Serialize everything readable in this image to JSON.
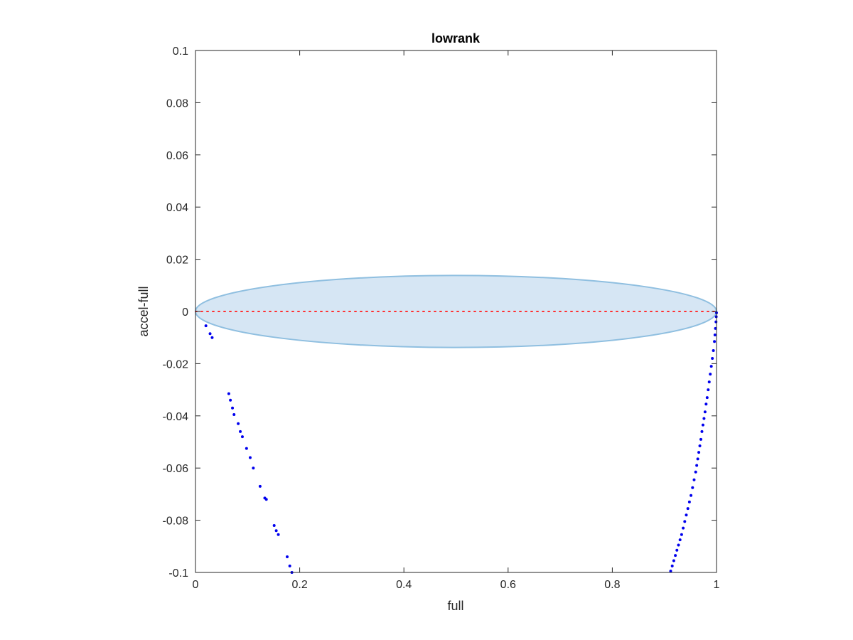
{
  "chart_data": {
    "type": "scatter",
    "title": "lowrank",
    "xlabel": "full",
    "ylabel": "accel-full",
    "xlim": [
      0,
      1
    ],
    "ylim": [
      -0.1,
      0.1
    ],
    "xticks": [
      0,
      0.2,
      0.4,
      0.6,
      0.8,
      1
    ],
    "xtick_labels": [
      "0",
      "0.2",
      "0.4",
      "0.6",
      "0.8",
      "1"
    ],
    "yticks": [
      -0.1,
      -0.08,
      -0.06,
      -0.04,
      -0.02,
      0,
      0.02,
      0.04,
      0.06,
      0.08,
      0.1
    ],
    "ytick_labels": [
      "-0.1",
      "-0.08",
      "-0.06",
      "-0.04",
      "-0.02",
      "0",
      "0.02",
      "0.04",
      "0.06",
      "0.08",
      "0.1"
    ],
    "grid": false,
    "colors": {
      "points": "#0000ee",
      "zero_line": "#ff3030",
      "ellipse_fill": "#d6e6f4",
      "ellipse_stroke": "#8fbfe0",
      "axes": "#262626"
    },
    "ellipse": {
      "center": [
        0.5,
        0
      ],
      "semi_axis_x": 0.5,
      "semi_axis_y": 0.0138
    },
    "reference_line": {
      "y": 0,
      "style": "dotted"
    },
    "points": [
      [
        0.02,
        -0.0055
      ],
      [
        0.028,
        -0.0085
      ],
      [
        0.032,
        -0.01
      ],
      [
        0.064,
        -0.0315
      ],
      [
        0.067,
        -0.034
      ],
      [
        0.071,
        -0.037
      ],
      [
        0.074,
        -0.0395
      ],
      [
        0.082,
        -0.043
      ],
      [
        0.086,
        -0.046
      ],
      [
        0.09,
        -0.048
      ],
      [
        0.098,
        -0.0525
      ],
      [
        0.105,
        -0.056
      ],
      [
        0.111,
        -0.06
      ],
      [
        0.124,
        -0.067
      ],
      [
        0.133,
        -0.0715
      ],
      [
        0.136,
        -0.072
      ],
      [
        0.151,
        -0.082
      ],
      [
        0.155,
        -0.084
      ],
      [
        0.159,
        -0.0855
      ],
      [
        0.176,
        -0.094
      ],
      [
        0.181,
        -0.0975
      ],
      [
        0.185,
        -0.1
      ],
      [
        0.912,
        -0.0995
      ],
      [
        0.915,
        -0.0975
      ],
      [
        0.918,
        -0.0955
      ],
      [
        0.921,
        -0.0935
      ],
      [
        0.924,
        -0.0915
      ],
      [
        0.927,
        -0.0895
      ],
      [
        0.93,
        -0.0875
      ],
      [
        0.933,
        -0.0855
      ],
      [
        0.936,
        -0.083
      ],
      [
        0.939,
        -0.0805
      ],
      [
        0.942,
        -0.078
      ],
      [
        0.945,
        -0.0755
      ],
      [
        0.948,
        -0.073
      ],
      [
        0.951,
        -0.0705
      ],
      [
        0.954,
        -0.0675
      ],
      [
        0.957,
        -0.0645
      ],
      [
        0.96,
        -0.0615
      ],
      [
        0.962,
        -0.059
      ],
      [
        0.964,
        -0.0565
      ],
      [
        0.966,
        -0.054
      ],
      [
        0.968,
        -0.0515
      ],
      [
        0.97,
        -0.049
      ],
      [
        0.972,
        -0.046
      ],
      [
        0.974,
        -0.0435
      ],
      [
        0.976,
        -0.041
      ],
      [
        0.978,
        -0.0385
      ],
      [
        0.98,
        -0.0355
      ],
      [
        0.982,
        -0.033
      ],
      [
        0.984,
        -0.03
      ],
      [
        0.986,
        -0.027
      ],
      [
        0.988,
        -0.024
      ],
      [
        0.99,
        -0.021
      ],
      [
        0.992,
        -0.018
      ],
      [
        0.994,
        -0.015
      ],
      [
        0.996,
        -0.0115
      ],
      [
        0.997,
        -0.009
      ],
      [
        0.998,
        -0.0065
      ],
      [
        0.999,
        -0.004
      ],
      [
        0.9995,
        -0.002
      ],
      [
        1.0,
        -0.0005
      ]
    ]
  }
}
